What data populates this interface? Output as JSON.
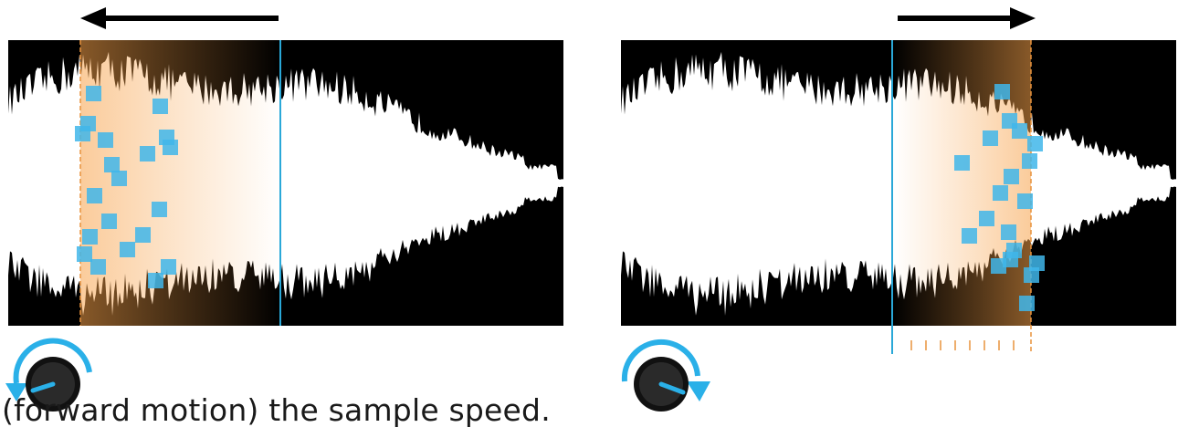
{
  "caption": "(forward motion) the sample speed.",
  "colors": {
    "playhead": "#2aa8d8",
    "grain": "#3fb6ea",
    "window_glow": "#f7a24a",
    "window_edge": "#e8923c",
    "waveform": "#ffffff",
    "background": "#000000",
    "knob_arrow": "#2ab0e8"
  },
  "panels": [
    {
      "id": "left",
      "direction": "backward",
      "motion_arrow": "left",
      "knob_rotation": "counter-clockwise",
      "grain_window_side": "before-playhead",
      "show_ticks": false
    },
    {
      "id": "right",
      "direction": "forward",
      "motion_arrow": "right",
      "knob_rotation": "clockwise",
      "grain_window_side": "after-playhead",
      "show_ticks": true
    }
  ]
}
